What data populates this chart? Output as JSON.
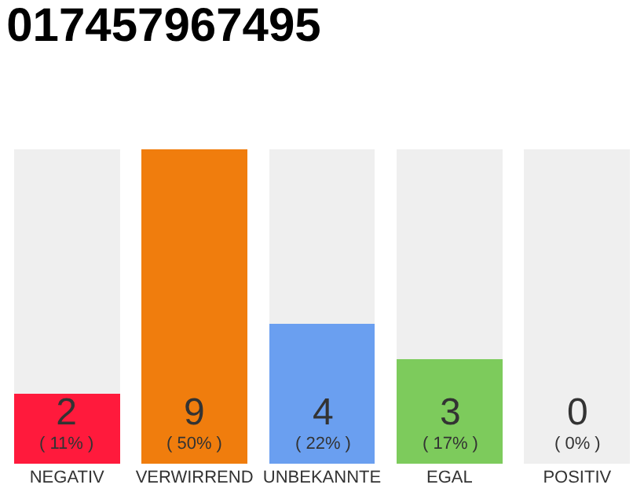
{
  "chart_data": {
    "type": "bar",
    "title": "017457967495",
    "stacked": true,
    "categories": [
      "NEGATIV",
      "VERWIRREND",
      "UNBEKANNTE",
      "EGAL",
      "POSITIV"
    ],
    "series": [
      {
        "colors": [
          "#ff1a3c",
          "#f07d0d",
          "#6a9ff0",
          "#7dcb5c",
          "#efefef"
        ],
        "values": [
          2,
          9,
          4,
          3,
          0
        ],
        "value_labels": [
          "2\n( 11% )",
          "9\n( 50% )",
          "4\n( 22% )",
          "3\n( 17% )",
          null
        ]
      },
      {
        "color": "#efefef",
        "values": [
          7,
          0,
          5,
          6,
          9
        ]
      }
    ],
    "annotations": [
      {
        "text": "0\n( 0% )",
        "x": "POSITIV",
        "y": 0
      }
    ]
  }
}
